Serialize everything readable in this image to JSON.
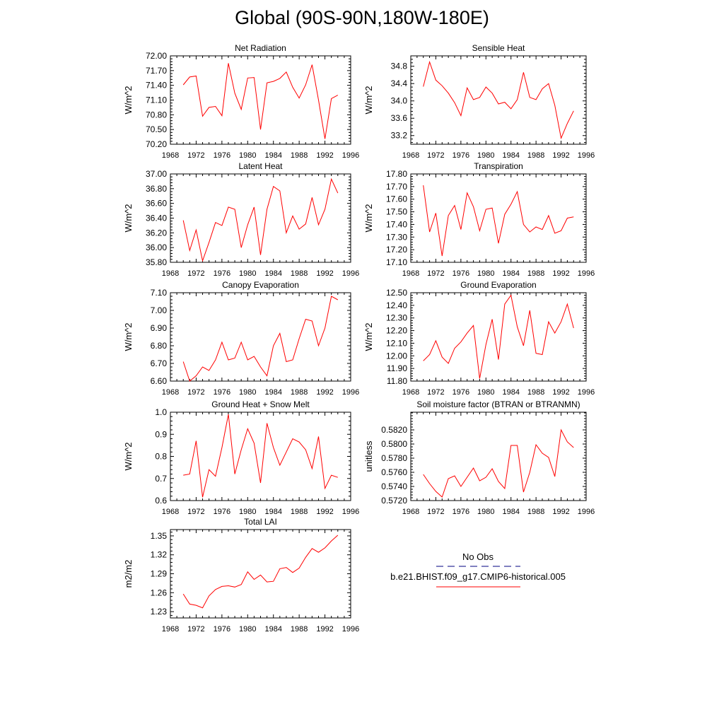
{
  "page_title": "Global (90S-90N,180W-180E)",
  "legend": {
    "obs_label": "No Obs",
    "model_label": "b.e21.BHIST.f09_g17.CMIP6-historical.005",
    "obs_color": "#000080",
    "model_color": "#ff0000"
  },
  "chart_data": [
    {
      "type": "line",
      "title": "Net Radiation",
      "ylabel": "W/m^2",
      "xlim": [
        1968,
        1996
      ],
      "ylim": [
        70.2,
        72.0
      ],
      "yticks": [
        70.2,
        70.5,
        70.8,
        71.1,
        71.4,
        71.7,
        72.0
      ],
      "ytick_labels": [
        "70.20",
        "70.50",
        "70.80",
        "71.10",
        "71.40",
        "71.70",
        "72.00"
      ],
      "xticks": [
        1968,
        1972,
        1976,
        1980,
        1984,
        1988,
        1992,
        1996
      ],
      "xtick_labels": [
        "1968",
        "1972",
        "1976",
        "1980",
        "1984",
        "1988",
        "1992",
        "1996"
      ],
      "series": [
        {
          "x": [
            1970,
            1971,
            1972,
            1973,
            1974,
            1975,
            1976,
            1977,
            1978,
            1979,
            1980,
            1981,
            1982,
            1983,
            1984,
            1985,
            1986,
            1987,
            1988,
            1989,
            1990,
            1991,
            1992,
            1993,
            1994
          ],
          "values": [
            71.41,
            71.57,
            71.59,
            70.77,
            70.95,
            70.97,
            70.78,
            71.85,
            71.24,
            70.91,
            71.55,
            71.56,
            70.5,
            71.45,
            71.48,
            71.54,
            71.67,
            71.36,
            71.14,
            71.41,
            71.82,
            71.1,
            70.31,
            71.13,
            71.2
          ]
        }
      ]
    },
    {
      "type": "line",
      "title": "Sensible Heat",
      "ylabel": "W/m^2",
      "xlim": [
        1968,
        1996
      ],
      "ylim": [
        33.0,
        35.04
      ],
      "yticks": [
        33.2,
        33.6,
        34.0,
        34.4,
        34.8
      ],
      "ytick_labels": [
        "33.2",
        "33.6",
        "34.0",
        "34.4",
        "34.8"
      ],
      "xticks": [
        1968,
        1972,
        1976,
        1980,
        1984,
        1988,
        1992,
        1996
      ],
      "xtick_labels": [
        "1968",
        "1972",
        "1976",
        "1980",
        "1984",
        "1988",
        "1992",
        "1996"
      ],
      "series": [
        {
          "x": [
            1970,
            1971,
            1972,
            1973,
            1974,
            1975,
            1976,
            1977,
            1978,
            1979,
            1980,
            1981,
            1982,
            1983,
            1984,
            1985,
            1986,
            1987,
            1988,
            1989,
            1990,
            1991,
            1992,
            1993,
            1994
          ],
          "values": [
            34.33,
            34.9,
            34.48,
            34.35,
            34.18,
            33.96,
            33.66,
            34.3,
            34.03,
            34.08,
            34.32,
            34.18,
            33.93,
            33.97,
            33.82,
            34.03,
            34.66,
            34.08,
            34.03,
            34.28,
            34.4,
            33.9,
            33.14,
            33.48,
            33.77
          ]
        }
      ]
    },
    {
      "type": "line",
      "title": "Latent Heat",
      "ylabel": "W/m^2",
      "xlim": [
        1968,
        1996
      ],
      "ylim": [
        35.8,
        37.0
      ],
      "yticks": [
        35.8,
        36.0,
        36.2,
        36.4,
        36.6,
        36.8,
        37.0
      ],
      "ytick_labels": [
        "35.80",
        "36.00",
        "36.20",
        "36.40",
        "36.60",
        "36.80",
        "37.00"
      ],
      "xticks": [
        1968,
        1972,
        1976,
        1980,
        1984,
        1988,
        1992,
        1996
      ],
      "xtick_labels": [
        "1968",
        "1972",
        "1976",
        "1980",
        "1984",
        "1988",
        "1992",
        "1996"
      ],
      "series": [
        {
          "x": [
            1970,
            1971,
            1972,
            1973,
            1974,
            1975,
            1976,
            1977,
            1978,
            1979,
            1980,
            1981,
            1982,
            1983,
            1984,
            1985,
            1986,
            1987,
            1988,
            1989,
            1990,
            1991,
            1992,
            1993,
            1994
          ],
          "values": [
            36.37,
            35.96,
            36.24,
            35.82,
            36.07,
            36.34,
            36.3,
            36.55,
            36.52,
            36.0,
            36.31,
            36.55,
            35.9,
            36.52,
            36.83,
            36.77,
            36.2,
            36.43,
            36.25,
            36.32,
            36.68,
            36.31,
            36.52,
            36.93,
            36.74
          ]
        }
      ]
    },
    {
      "type": "line",
      "title": "Transpiration",
      "ylabel": "W/m^2",
      "xlim": [
        1968,
        1996
      ],
      "ylim": [
        17.1,
        17.8
      ],
      "yticks": [
        17.1,
        17.2,
        17.3,
        17.4,
        17.5,
        17.6,
        17.7,
        17.8
      ],
      "ytick_labels": [
        "17.10",
        "17.20",
        "17.30",
        "17.40",
        "17.50",
        "17.60",
        "17.70",
        "17.80"
      ],
      "xticks": [
        1968,
        1972,
        1976,
        1980,
        1984,
        1988,
        1992,
        1996
      ],
      "xtick_labels": [
        "1968",
        "1972",
        "1976",
        "1980",
        "1984",
        "1988",
        "1992",
        "1996"
      ],
      "series": [
        {
          "x": [
            1970,
            1971,
            1972,
            1973,
            1974,
            1975,
            1976,
            1977,
            1978,
            1979,
            1980,
            1981,
            1982,
            1983,
            1984,
            1985,
            1986,
            1987,
            1988,
            1989,
            1990,
            1991,
            1992,
            1993,
            1994
          ],
          "values": [
            17.71,
            17.34,
            17.49,
            17.15,
            17.47,
            17.55,
            17.36,
            17.65,
            17.54,
            17.35,
            17.52,
            17.53,
            17.25,
            17.48,
            17.56,
            17.66,
            17.4,
            17.34,
            17.38,
            17.36,
            17.47,
            17.33,
            17.35,
            17.45,
            17.46
          ]
        }
      ]
    },
    {
      "type": "line",
      "title": "Canopy Evaporation",
      "ylabel": "W/m^2",
      "xlim": [
        1968,
        1996
      ],
      "ylim": [
        6.6,
        7.1
      ],
      "yticks": [
        6.6,
        6.7,
        6.8,
        6.9,
        7.0,
        7.1
      ],
      "ytick_labels": [
        "6.60",
        "6.70",
        "6.80",
        "6.90",
        "7.00",
        "7.10"
      ],
      "xticks": [
        1968,
        1972,
        1976,
        1980,
        1984,
        1988,
        1992,
        1996
      ],
      "xtick_labels": [
        "1968",
        "1972",
        "1976",
        "1980",
        "1984",
        "1988",
        "1992",
        "1996"
      ],
      "series": [
        {
          "x": [
            1970,
            1971,
            1972,
            1973,
            1974,
            1975,
            1976,
            1977,
            1978,
            1979,
            1980,
            1981,
            1982,
            1983,
            1984,
            1985,
            1986,
            1987,
            1988,
            1989,
            1990,
            1991,
            1992,
            1993,
            1994
          ],
          "values": [
            6.71,
            6.6,
            6.63,
            6.68,
            6.66,
            6.72,
            6.82,
            6.72,
            6.73,
            6.82,
            6.72,
            6.74,
            6.68,
            6.63,
            6.8,
            6.87,
            6.71,
            6.72,
            6.84,
            6.95,
            6.94,
            6.8,
            6.9,
            7.08,
            7.06
          ]
        }
      ]
    },
    {
      "type": "line",
      "title": "Ground Evaporation",
      "ylabel": "W/m^2",
      "xlim": [
        1968,
        1996
      ],
      "ylim": [
        11.8,
        12.5
      ],
      "yticks": [
        11.8,
        11.9,
        12.0,
        12.1,
        12.2,
        12.3,
        12.4,
        12.5
      ],
      "ytick_labels": [
        "11.80",
        "11.90",
        "12.00",
        "12.10",
        "12.20",
        "12.30",
        "12.40",
        "12.50"
      ],
      "xticks": [
        1968,
        1972,
        1976,
        1980,
        1984,
        1988,
        1992,
        1996
      ],
      "xtick_labels": [
        "1968",
        "1972",
        "1976",
        "1980",
        "1984",
        "1988",
        "1992",
        "1996"
      ],
      "series": [
        {
          "x": [
            1970,
            1971,
            1972,
            1973,
            1974,
            1975,
            1976,
            1977,
            1978,
            1979,
            1980,
            1981,
            1982,
            1983,
            1984,
            1985,
            1986,
            1987,
            1988,
            1989,
            1990,
            1991,
            1992,
            1993,
            1994
          ],
          "values": [
            11.96,
            12.01,
            12.12,
            11.99,
            11.94,
            12.06,
            12.11,
            12.18,
            12.24,
            11.82,
            12.09,
            12.29,
            11.97,
            12.41,
            12.48,
            12.23,
            12.08,
            12.36,
            12.02,
            12.01,
            12.27,
            12.18,
            12.27,
            12.41,
            12.22
          ]
        }
      ]
    },
    {
      "type": "line",
      "title": "Ground Heat + Snow Melt",
      "ylabel": "W/m^2",
      "xlim": [
        1968,
        1996
      ],
      "ylim": [
        0.6,
        1.0
      ],
      "yticks": [
        0.6,
        0.7,
        0.8,
        0.9,
        1.0
      ],
      "ytick_labels": [
        "0.6",
        "0.7",
        "0.8",
        "0.9",
        "1.0"
      ],
      "xticks": [
        1968,
        1972,
        1976,
        1980,
        1984,
        1988,
        1992,
        1996
      ],
      "xtick_labels": [
        "1968",
        "1972",
        "1976",
        "1980",
        "1984",
        "1988",
        "1992",
        "1996"
      ],
      "series": [
        {
          "x": [
            1970,
            1971,
            1972,
            1973,
            1974,
            1975,
            1976,
            1977,
            1978,
            1979,
            1980,
            1981,
            1982,
            1983,
            1984,
            1985,
            1986,
            1987,
            1988,
            1989,
            1990,
            1991,
            1992,
            1993,
            1994
          ],
          "values": [
            0.715,
            0.72,
            0.87,
            0.615,
            0.74,
            0.71,
            0.84,
            0.99,
            0.72,
            0.83,
            0.925,
            0.86,
            0.68,
            0.95,
            0.84,
            0.76,
            0.82,
            0.88,
            0.865,
            0.83,
            0.745,
            0.89,
            0.655,
            0.715,
            0.705
          ]
        }
      ]
    },
    {
      "type": "line",
      "title": "Soil moisture factor (BTRAN or BTRANMN)",
      "ylabel": "unitless",
      "xlim": [
        1968,
        1996
      ],
      "ylim": [
        0.572,
        0.5845
      ],
      "yticks": [
        0.572,
        0.574,
        0.576,
        0.578,
        0.58,
        0.582
      ],
      "ytick_labels": [
        "0.5720",
        "0.5740",
        "0.5760",
        "0.5780",
        "0.5800",
        "0.5820"
      ],
      "xticks": [
        1968,
        1972,
        1976,
        1980,
        1984,
        1988,
        1992,
        1996
      ],
      "xtick_labels": [
        "1968",
        "1972",
        "1976",
        "1980",
        "1984",
        "1988",
        "1992",
        "1996"
      ],
      "series": [
        {
          "x": [
            1970,
            1971,
            1972,
            1973,
            1974,
            1975,
            1976,
            1977,
            1978,
            1979,
            1980,
            1981,
            1982,
            1983,
            1984,
            1985,
            1986,
            1987,
            1988,
            1989,
            1990,
            1991,
            1992,
            1993,
            1994
          ],
          "values": [
            0.5757,
            0.5744,
            0.5733,
            0.5725,
            0.5751,
            0.5755,
            0.574,
            0.5753,
            0.5766,
            0.5748,
            0.5753,
            0.5765,
            0.5747,
            0.5737,
            0.5798,
            0.5798,
            0.5732,
            0.576,
            0.5799,
            0.5787,
            0.5781,
            0.5754,
            0.582,
            0.5803,
            0.5795
          ]
        }
      ]
    },
    {
      "type": "line",
      "title": "Total LAI",
      "ylabel": "m2/m2",
      "xlim": [
        1968,
        1996
      ],
      "ylim": [
        1.22,
        1.36
      ],
      "yticks": [
        1.23,
        1.26,
        1.29,
        1.32,
        1.35
      ],
      "ytick_labels": [
        "1.23",
        "1.26",
        "1.29",
        "1.32",
        "1.35"
      ],
      "xticks": [
        1968,
        1972,
        1976,
        1980,
        1984,
        1988,
        1992,
        1996
      ],
      "xtick_labels": [
        "1968",
        "1972",
        "1976",
        "1980",
        "1984",
        "1988",
        "1992",
        "1996"
      ],
      "series": [
        {
          "x": [
            1970,
            1971,
            1972,
            1973,
            1974,
            1975,
            1976,
            1977,
            1978,
            1979,
            1980,
            1981,
            1982,
            1983,
            1984,
            1985,
            1986,
            1987,
            1988,
            1989,
            1990,
            1991,
            1992,
            1993,
            1994
          ],
          "values": [
            1.258,
            1.242,
            1.24,
            1.236,
            1.255,
            1.265,
            1.27,
            1.271,
            1.269,
            1.273,
            1.293,
            1.281,
            1.288,
            1.277,
            1.278,
            1.298,
            1.3,
            1.292,
            1.299,
            1.316,
            1.33,
            1.324,
            1.331,
            1.342,
            1.351
          ]
        }
      ]
    }
  ]
}
